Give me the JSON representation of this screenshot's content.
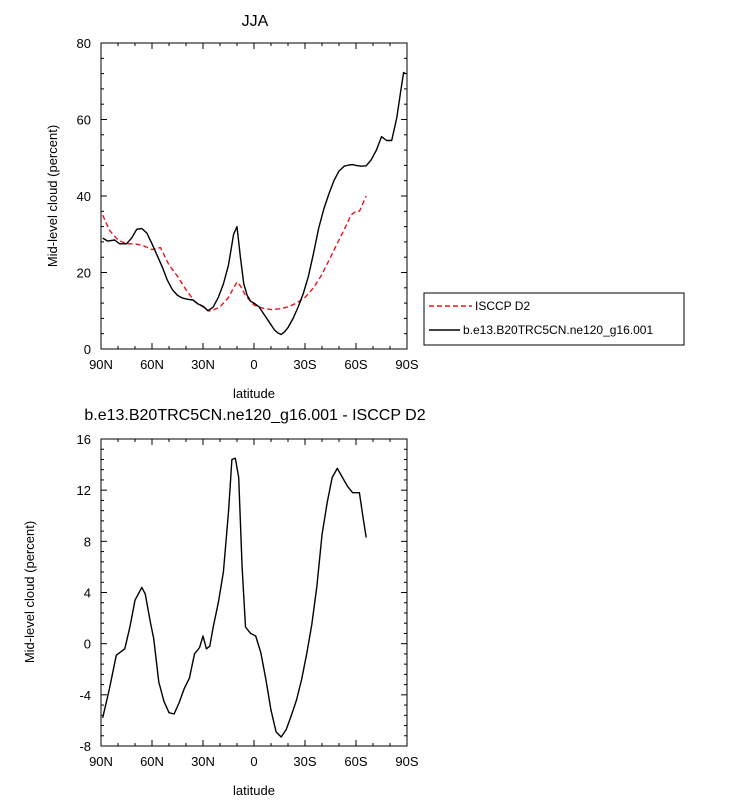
{
  "chart_data": [
    {
      "type": "line",
      "title": "JJA",
      "xlabel": "latitude",
      "ylabel": "Mid-level cloud (percent)",
      "xlim": [
        -90,
        90
      ],
      "ylim": [
        0,
        80
      ],
      "xticks": [
        -90,
        -60,
        -30,
        0,
        30,
        60,
        90
      ],
      "xtick_labels": [
        "90N",
        "60N",
        "30N",
        "0",
        "30S",
        "60S",
        "90S"
      ],
      "yticks": [
        0,
        20,
        40,
        60,
        80
      ],
      "ytick_labels": [
        "0",
        "20",
        "40",
        "60",
        "80"
      ],
      "grid": false,
      "legend_position": "right",
      "series": [
        {
          "name": "ISCCP D2",
          "color": "#e8141c",
          "dash": "dashed",
          "x": [
            -89,
            -85,
            -80,
            -75,
            -70,
            -65,
            -60,
            -55,
            -50,
            -45,
            -40,
            -35,
            -30,
            -27,
            -25,
            -20,
            -15,
            -12,
            -10,
            -8,
            -5,
            0,
            5,
            10,
            15,
            20,
            25,
            30,
            35,
            40,
            45,
            50,
            55,
            57,
            60,
            62,
            63,
            66
          ],
          "y": [
            35,
            31,
            28.5,
            27.5,
            27.5,
            27,
            26,
            26.5,
            22,
            19,
            15.5,
            12.5,
            11,
            10,
            10,
            11,
            13.5,
            16,
            17.5,
            16.5,
            14,
            11.5,
            10.7,
            10.3,
            10.5,
            11,
            12,
            13.5,
            16,
            19.5,
            24,
            28.5,
            33,
            35,
            36,
            36,
            37,
            40
          ]
        },
        {
          "name": "b.e13.B20TRC5CN.ne120_g16.001",
          "color": "#000000",
          "dash": "solid",
          "x": [
            -89,
            -86,
            -82,
            -79,
            -75,
            -72,
            -69,
            -66,
            -63,
            -60,
            -57,
            -54,
            -51,
            -48,
            -45,
            -42,
            -39,
            -36,
            -33,
            -30,
            -27,
            -24,
            -21,
            -18,
            -15,
            -12,
            -10,
            -8,
            -6,
            -4,
            -2,
            0,
            3,
            6,
            9,
            12,
            14,
            16,
            18,
            20,
            23,
            26,
            29,
            32,
            35,
            38,
            41,
            44,
            47,
            50,
            53,
            56,
            58,
            60,
            63,
            66,
            69,
            72,
            75,
            78,
            81,
            84,
            86,
            88,
            89
          ],
          "y": [
            29,
            28.2,
            28.5,
            27.5,
            27.5,
            29,
            31.3,
            31.5,
            30.3,
            27.5,
            24.5,
            21.5,
            18,
            15.5,
            14,
            13.3,
            13,
            12.8,
            11.8,
            11.2,
            10,
            11,
            13.5,
            17,
            22,
            30,
            32,
            24,
            17,
            14,
            12.5,
            12,
            11,
            9,
            7,
            5,
            4.2,
            3.8,
            4.5,
            5.6,
            8,
            11,
            14.5,
            19,
            25,
            31.5,
            36.5,
            40.5,
            44,
            46.5,
            47.8,
            48.1,
            48.2,
            48,
            47.8,
            47.9,
            49.5,
            52,
            55.5,
            54.5,
            54.5,
            60.5,
            66.5,
            72.3,
            72
          ]
        }
      ]
    },
    {
      "type": "line",
      "title": "b.e13.B20TRC5CN.ne120_g16.001 - ISCCP D2",
      "xlabel": "latitude",
      "ylabel": "Mid-level cloud (percent)",
      "xlim": [
        -90,
        90
      ],
      "ylim": [
        -8,
        16
      ],
      "xticks": [
        -90,
        -60,
        -30,
        0,
        30,
        60,
        90
      ],
      "xtick_labels": [
        "90N",
        "60N",
        "30N",
        "0",
        "30S",
        "60S",
        "90S"
      ],
      "yticks": [
        -8,
        -4,
        0,
        4,
        8,
        12,
        16
      ],
      "ytick_labels": [
        "-8",
        "-4",
        "0",
        "4",
        "8",
        "12",
        "16"
      ],
      "grid": false,
      "series": [
        {
          "color": "#000000",
          "dash": "solid",
          "x": [
            -89,
            -85,
            -81,
            -76,
            -73,
            -70,
            -66,
            -64,
            -61,
            -59,
            -56,
            -53,
            -50,
            -47,
            -44,
            -41,
            -38,
            -35,
            -32,
            -30,
            -28,
            -26,
            -24,
            -21,
            -18,
            -15,
            -13,
            -11,
            -9,
            -7,
            -5,
            -2,
            1,
            4,
            7,
            10,
            13,
            16,
            19,
            22,
            25,
            28,
            31,
            34,
            37,
            40,
            43,
            46,
            49,
            52,
            55,
            58,
            60,
            62,
            64,
            66
          ],
          "y": [
            -5.8,
            -3.5,
            -0.9,
            -0.4,
            1.3,
            3.4,
            4.4,
            3.9,
            1.7,
            0.4,
            -3,
            -4.5,
            -5.4,
            -5.5,
            -4.6,
            -3.5,
            -2.7,
            -0.8,
            -0.3,
            0.6,
            -0.4,
            -0.2,
            1.3,
            3.2,
            5.6,
            10.3,
            14.4,
            14.5,
            13,
            6,
            1.3,
            0.8,
            0.6,
            -0.7,
            -2.8,
            -5.2,
            -6.9,
            -7.3,
            -6.7,
            -5.6,
            -4.4,
            -2.8,
            -0.8,
            1.5,
            4.5,
            8.5,
            11,
            13,
            13.7,
            13,
            12.3,
            11.8,
            11.8,
            11.8,
            10,
            8.3
          ]
        }
      ]
    }
  ]
}
